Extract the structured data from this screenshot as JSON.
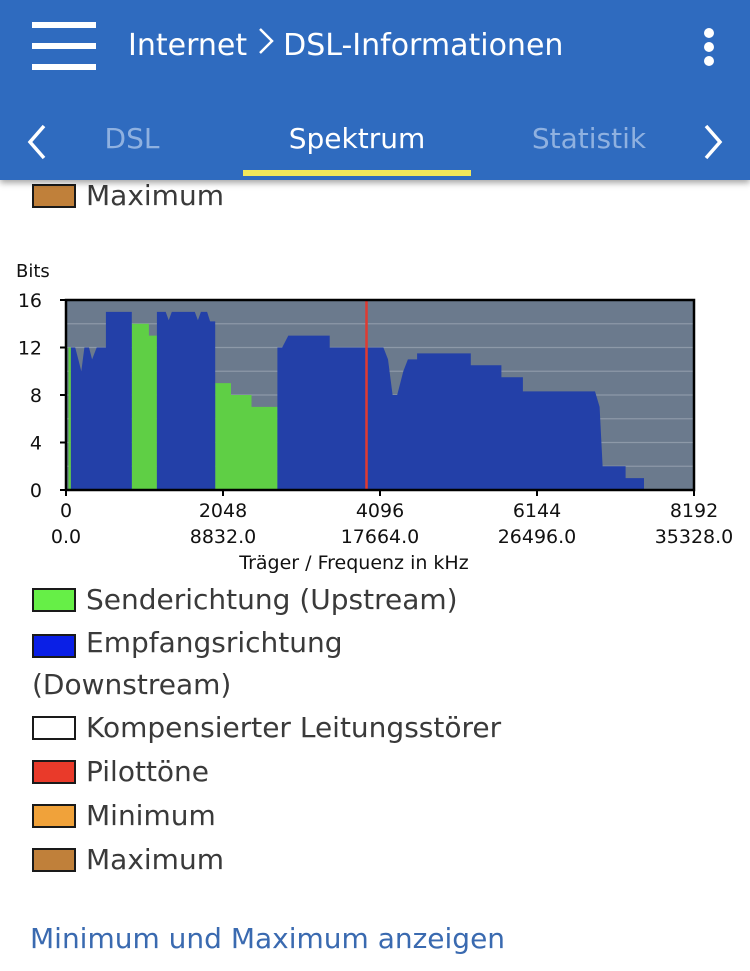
{
  "header": {
    "breadcrumb": [
      "Internet",
      "DSL-Informationen"
    ],
    "tabs": [
      {
        "label": "DSL",
        "active": false
      },
      {
        "label": "Spektrum",
        "active": true
      },
      {
        "label": "Statistik",
        "active": false
      }
    ],
    "bg_color": "#2f6bbf",
    "active_tab_underline_color": "#f1e75b"
  },
  "icons": {
    "menu": "hamburger-menu-icon",
    "more": "kebab-menu-icon",
    "breadcrumb_separator": "chevron-right-icon",
    "tab_prev": "chevron-left-icon",
    "tab_next": "chevron-right-icon"
  },
  "top_legend": {
    "label": "Maximum",
    "color": "#c0803a"
  },
  "chart_data": {
    "type": "area",
    "ylabel": "Bits",
    "xlabel": "Träger / Frequenz in kHz",
    "ylim": [
      0,
      16
    ],
    "yticks": [
      "16",
      "12",
      "8",
      "4",
      "0"
    ],
    "xlim": [
      0,
      8192
    ],
    "xticks_carrier": [
      "0",
      "2048",
      "4096",
      "6144",
      "8192"
    ],
    "xticks_freq": [
      "0.0",
      "8832.0",
      "17664.0",
      "26496.0",
      "35328.0"
    ],
    "background_color": "#6b7a8d",
    "grid": true,
    "pilot_tone_carrier": 3920,
    "series": [
      {
        "name": "Sendericht­ung (Upstream)",
        "color": "#5fcf45",
        "segments": [
          [
            [
              32,
              0
            ],
            [
              32,
              12
            ],
            [
              64,
              12
            ],
            [
              64,
              0
            ]
          ],
          [
            [
              858,
              0
            ],
            [
              858,
              14
            ],
            [
              1082,
              14
            ],
            [
              1082,
              13
            ],
            [
              1186,
              13
            ],
            [
              1186,
              0
            ]
          ],
          [
            [
              1946,
              0
            ],
            [
              1946,
              9
            ],
            [
              2152,
              9
            ],
            [
              2152,
              8
            ],
            [
              2420,
              8
            ],
            [
              2420,
              7
            ],
            [
              2758,
              7
            ],
            [
              2758,
              0
            ]
          ]
        ]
      },
      {
        "name": "Empfangsrichtung (Downstream)",
        "color": "#2340a8",
        "segments": [
          [
            [
              64,
              0
            ],
            [
              64,
              12
            ],
            [
              120,
              12
            ],
            [
              160,
              11
            ],
            [
              200,
              10
            ],
            [
              240,
              12
            ],
            [
              300,
              12
            ],
            [
              340,
              11
            ],
            [
              400,
              12
            ],
            [
              520,
              12
            ],
            [
              520,
              15
            ],
            [
              858,
              15
            ],
            [
              858,
              0
            ]
          ],
          [
            [
              1186,
              0
            ],
            [
              1186,
              15
            ],
            [
              1300,
              15
            ],
            [
              1340,
              14.3
            ],
            [
              1380,
              15
            ],
            [
              1680,
              15
            ],
            [
              1720,
              14.3
            ],
            [
              1760,
              15
            ],
            [
              1840,
              15
            ],
            [
              1880,
              14.2
            ],
            [
              1946,
              14.2
            ],
            [
              1946,
              0
            ]
          ],
          [
            [
              2758,
              0
            ],
            [
              2758,
              12
            ],
            [
              2820,
              12
            ],
            [
              2860,
              12.5
            ],
            [
              2900,
              13
            ],
            [
              3440,
              13
            ],
            [
              3440,
              12
            ],
            [
              3890,
              12
            ],
            [
              3890,
              12
            ],
            [
              4140,
              12
            ],
            [
              4200,
              11
            ],
            [
              4260,
              8
            ],
            [
              4320,
              8
            ],
            [
              4400,
              10
            ],
            [
              4460,
              11
            ],
            [
              4580,
              11
            ],
            [
              4580,
              11.5
            ],
            [
              5280,
              11.5
            ],
            [
              5280,
              10.5
            ],
            [
              5680,
              10.5
            ],
            [
              5680,
              9.5
            ],
            [
              5960,
              9.5
            ],
            [
              5960,
              8.3
            ],
            [
              6900,
              8.3
            ],
            [
              6960,
              7
            ],
            [
              7000,
              2
            ],
            [
              7300,
              2
            ],
            [
              7300,
              1
            ],
            [
              7540,
              1
            ],
            [
              7540,
              0
            ]
          ]
        ]
      }
    ]
  },
  "legend": [
    {
      "label": "Senderichtung (Upstream)",
      "color": "#66ef47"
    },
    {
      "label": "Empfangsrichtung (Downstream)",
      "color": "#0a1fe6"
    },
    {
      "label": "Kompensierter Leitungsstörer",
      "color": "#ffffff"
    },
    {
      "label": "Pilottöne",
      "color": "#e93a2a"
    },
    {
      "label": "Minimum",
      "color": "#f0a23a"
    },
    {
      "label": "Maximum",
      "color": "#c0803a"
    }
  ],
  "legend_wrap": {
    "line1": "Empfangsrichtung",
    "line2": "(Downstream)"
  },
  "toggle_link": "Minimum und Maximum anzeigen"
}
